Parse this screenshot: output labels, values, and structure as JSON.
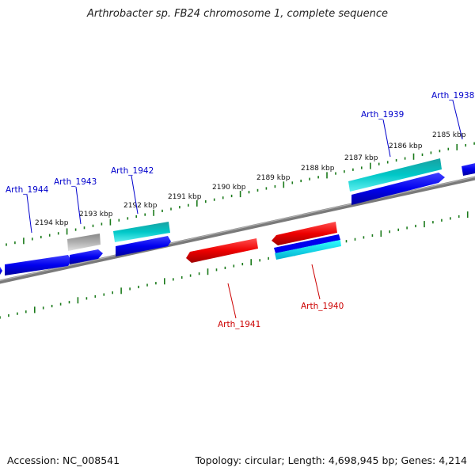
{
  "title": "Arthrobacter sp. FB24 chromosome 1, complete sequence",
  "footer": {
    "accession": "Accession: NC_008541",
    "summary": "Topology: circular; Length: 4,698,945 bp; Genes: 4,214"
  },
  "colors": {
    "forward_gene": "#0000ee",
    "reverse_gene": "#ee0000",
    "rna_gene": "#00c8c8",
    "pseudo_gene": "#b0b0b0",
    "backbone": "#7a7a7a",
    "ticks": "#1a7a1a",
    "forward_label": "#0000cc",
    "reverse_label": "#cc0000"
  },
  "ticks": [
    {
      "label": "2194 kbp"
    },
    {
      "label": "2193 kbp"
    },
    {
      "label": "2192 kbp"
    },
    {
      "label": "2191 kbp"
    },
    {
      "label": "2190 kbp"
    },
    {
      "label": "2189 kbp"
    },
    {
      "label": "2188 kbp"
    },
    {
      "label": "2187 kbp"
    },
    {
      "label": "2186 kbp"
    },
    {
      "label": "2185 kbp"
    }
  ],
  "genes": [
    {
      "label": "Arth_1944",
      "strand": "forward"
    },
    {
      "label": "Arth_1943",
      "strand": "forward"
    },
    {
      "label": "Arth_1942",
      "strand": "forward"
    },
    {
      "label": "Arth_1941",
      "strand": "reverse"
    },
    {
      "label": "Arth_1940",
      "strand": "reverse"
    },
    {
      "label": "Arth_1939",
      "strand": "forward"
    },
    {
      "label": "Arth_1938",
      "strand": "forward"
    }
  ]
}
